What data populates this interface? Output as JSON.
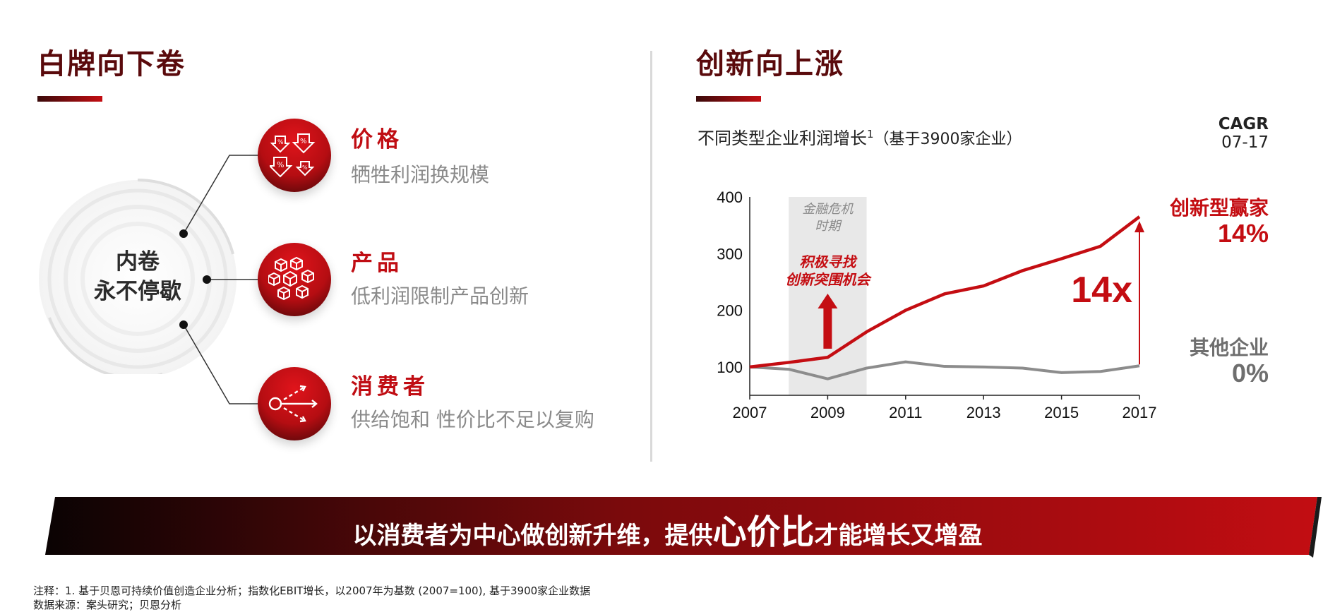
{
  "left": {
    "title": "白牌向下卷",
    "center_line1": "内卷",
    "center_line2": "永不停歇",
    "items": [
      {
        "title": "价格",
        "subtitle": "牺牲利润换规模",
        "icon": "percent-down-icon"
      },
      {
        "title": "产品",
        "subtitle": "低利润限制产品创新",
        "icon": "boxes-icon"
      },
      {
        "title": "消费者",
        "subtitle": "供给饱和 性价比不足以复购",
        "icon": "scatter-arrows-icon"
      }
    ]
  },
  "right": {
    "title": "创新向上涨",
    "chart_subtitle_main": "不同类型企业利润增长",
    "chart_subtitle_sup": "1",
    "chart_subtitle_tail": "（基于3900家企业）",
    "cagr_line1": "CAGR",
    "cagr_line2": "07-17"
  },
  "chart_data": {
    "type": "line",
    "x": [
      2007,
      2008,
      2009,
      2010,
      2011,
      2012,
      2013,
      2014,
      2015,
      2016,
      2017
    ],
    "xticks": [
      "2007",
      "2009",
      "2011",
      "2013",
      "2015",
      "2017"
    ],
    "yticks": [
      "100",
      "200",
      "300",
      "400"
    ],
    "ylim": [
      50,
      400
    ],
    "xlim": [
      2007,
      2017
    ],
    "series": [
      {
        "name": "创新型赢家",
        "cagr": "14%",
        "color": "#c40d12",
        "values": [
          100,
          108,
          117,
          162,
          200,
          229,
          243,
          270,
          291,
          313,
          365
        ]
      },
      {
        "name": "其他企业",
        "cagr": "0%",
        "color": "#8c8c8c",
        "values": [
          100,
          96,
          79,
          98,
          109,
          101,
          100,
          98,
          90,
          92,
          102
        ]
      }
    ],
    "shaded_region": {
      "from": 2008,
      "to": 2010,
      "label_line1": "金融危机",
      "label_line2": "时期"
    },
    "annotation_line1": "积极寻找",
    "annotation_line2": "创新突围机会",
    "multiplier_label": "14x"
  },
  "banner": {
    "part1": "以消费者为中心做创新升维，提供",
    "highlight": "心价比",
    "part2": "才能增长又增盈"
  },
  "notes": {
    "line1": "注释：1. 基于贝恩可持续价值创造企业分析；指数化EBIT增长，以2007年为基数 (2007=100), 基于3900家企业数据",
    "line2": "数据来源：案头研究；贝恩分析"
  }
}
